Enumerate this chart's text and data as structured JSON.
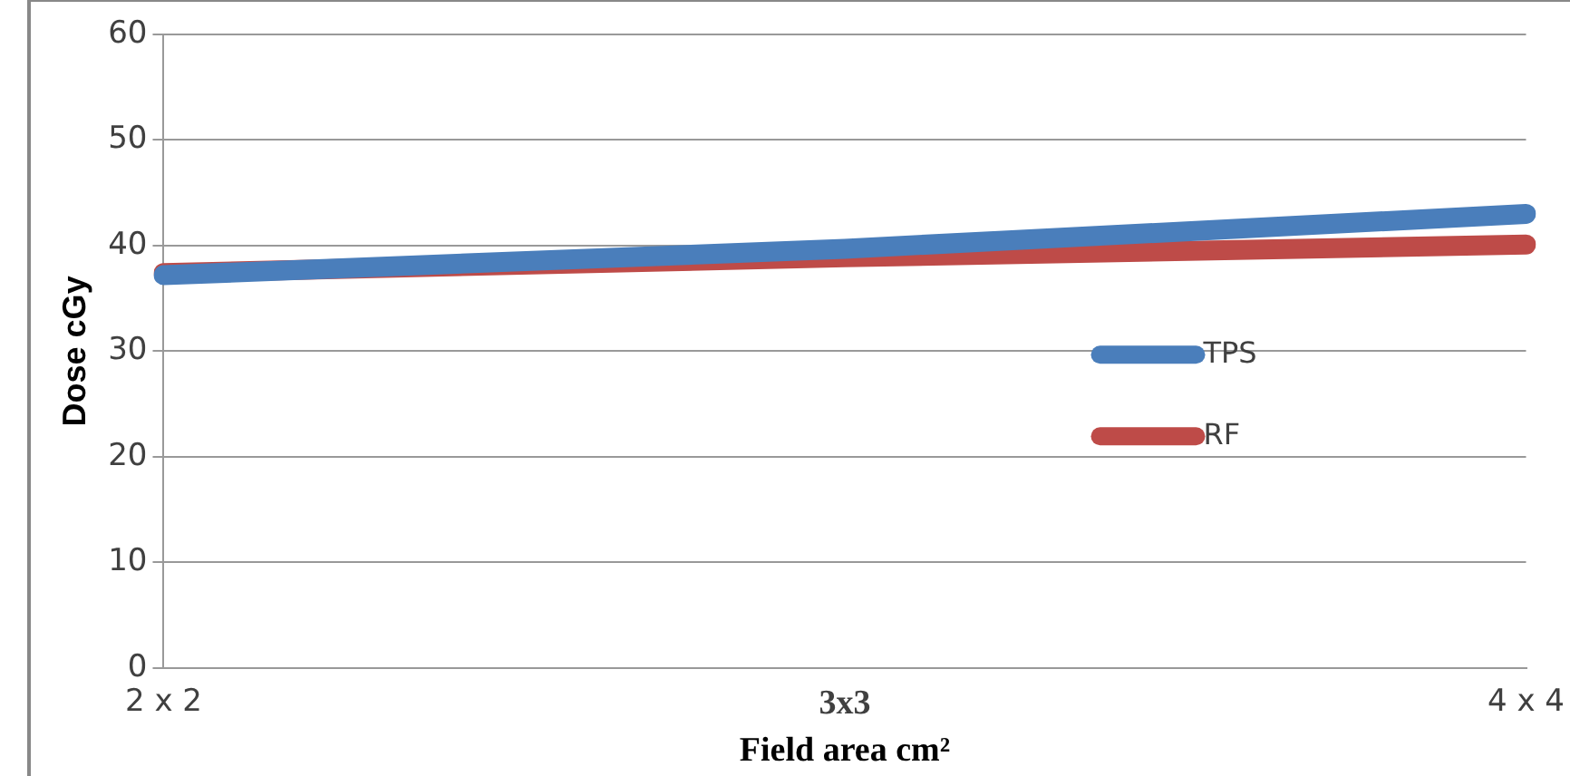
{
  "chart_data": {
    "type": "line",
    "xlabel": "Field area cm²",
    "ylabel": "Dose cGy",
    "categories": [
      "2 x 2",
      "3x3",
      "4 x 4"
    ],
    "series": [
      {
        "name": "TPS",
        "color": "#4a7ebb",
        "values": [
          37.2,
          39.7,
          43.0
        ]
      },
      {
        "name": "RF",
        "color": "#be4b48",
        "values": [
          37.4,
          38.9,
          40.1
        ]
      }
    ],
    "ylim": [
      0,
      60
    ],
    "yticks": [
      0,
      10,
      20,
      30,
      40,
      50,
      60
    ],
    "grid": "y",
    "legend": "right",
    "marker": "none",
    "line_style": "solid"
  }
}
